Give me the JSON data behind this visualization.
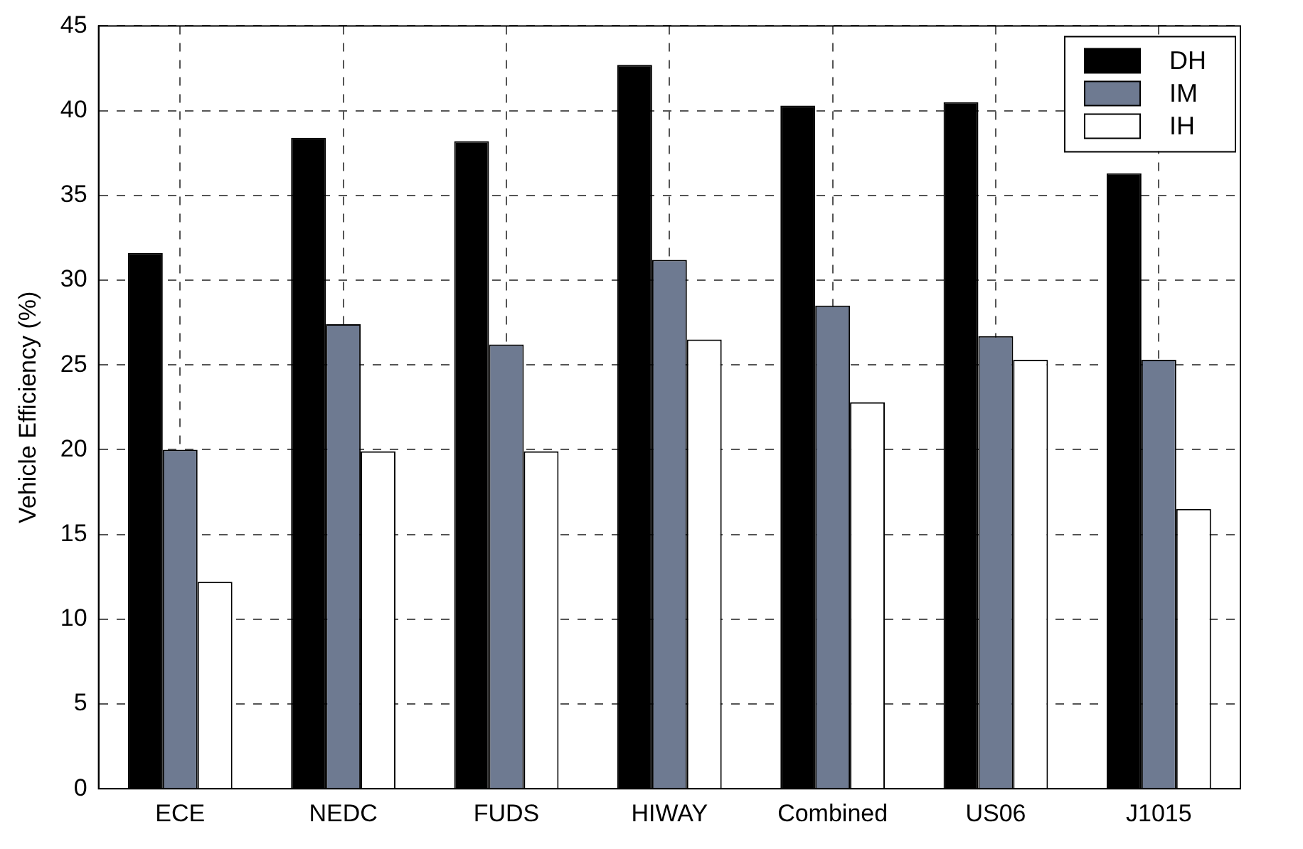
{
  "chart_data": {
    "type": "bar",
    "ylabel": "Vehicle Efficiency (%)",
    "categories": [
      "ECE",
      "NEDC",
      "FUDS",
      "HIWAY",
      "Combined",
      "US06",
      "J1015"
    ],
    "series": [
      {
        "name": "DH",
        "color": "#000000",
        "values": [
          31.6,
          38.4,
          38.2,
          42.7,
          40.3,
          40.5,
          36.3
        ]
      },
      {
        "name": "IM",
        "color": "#6e7a91",
        "values": [
          20,
          27.4,
          26.2,
          31.2,
          28.5,
          26.7,
          25.3
        ]
      },
      {
        "name": "IH",
        "color": "#ffffff",
        "values": [
          12.2,
          19.9,
          19.9,
          26.5,
          22.8,
          25.3,
          16.5
        ]
      }
    ],
    "ylim": [
      0,
      45
    ],
    "yticks": [
      0,
      5,
      10,
      15,
      20,
      25,
      30,
      35,
      40,
      45
    ],
    "grid": true,
    "legend": "top right"
  }
}
